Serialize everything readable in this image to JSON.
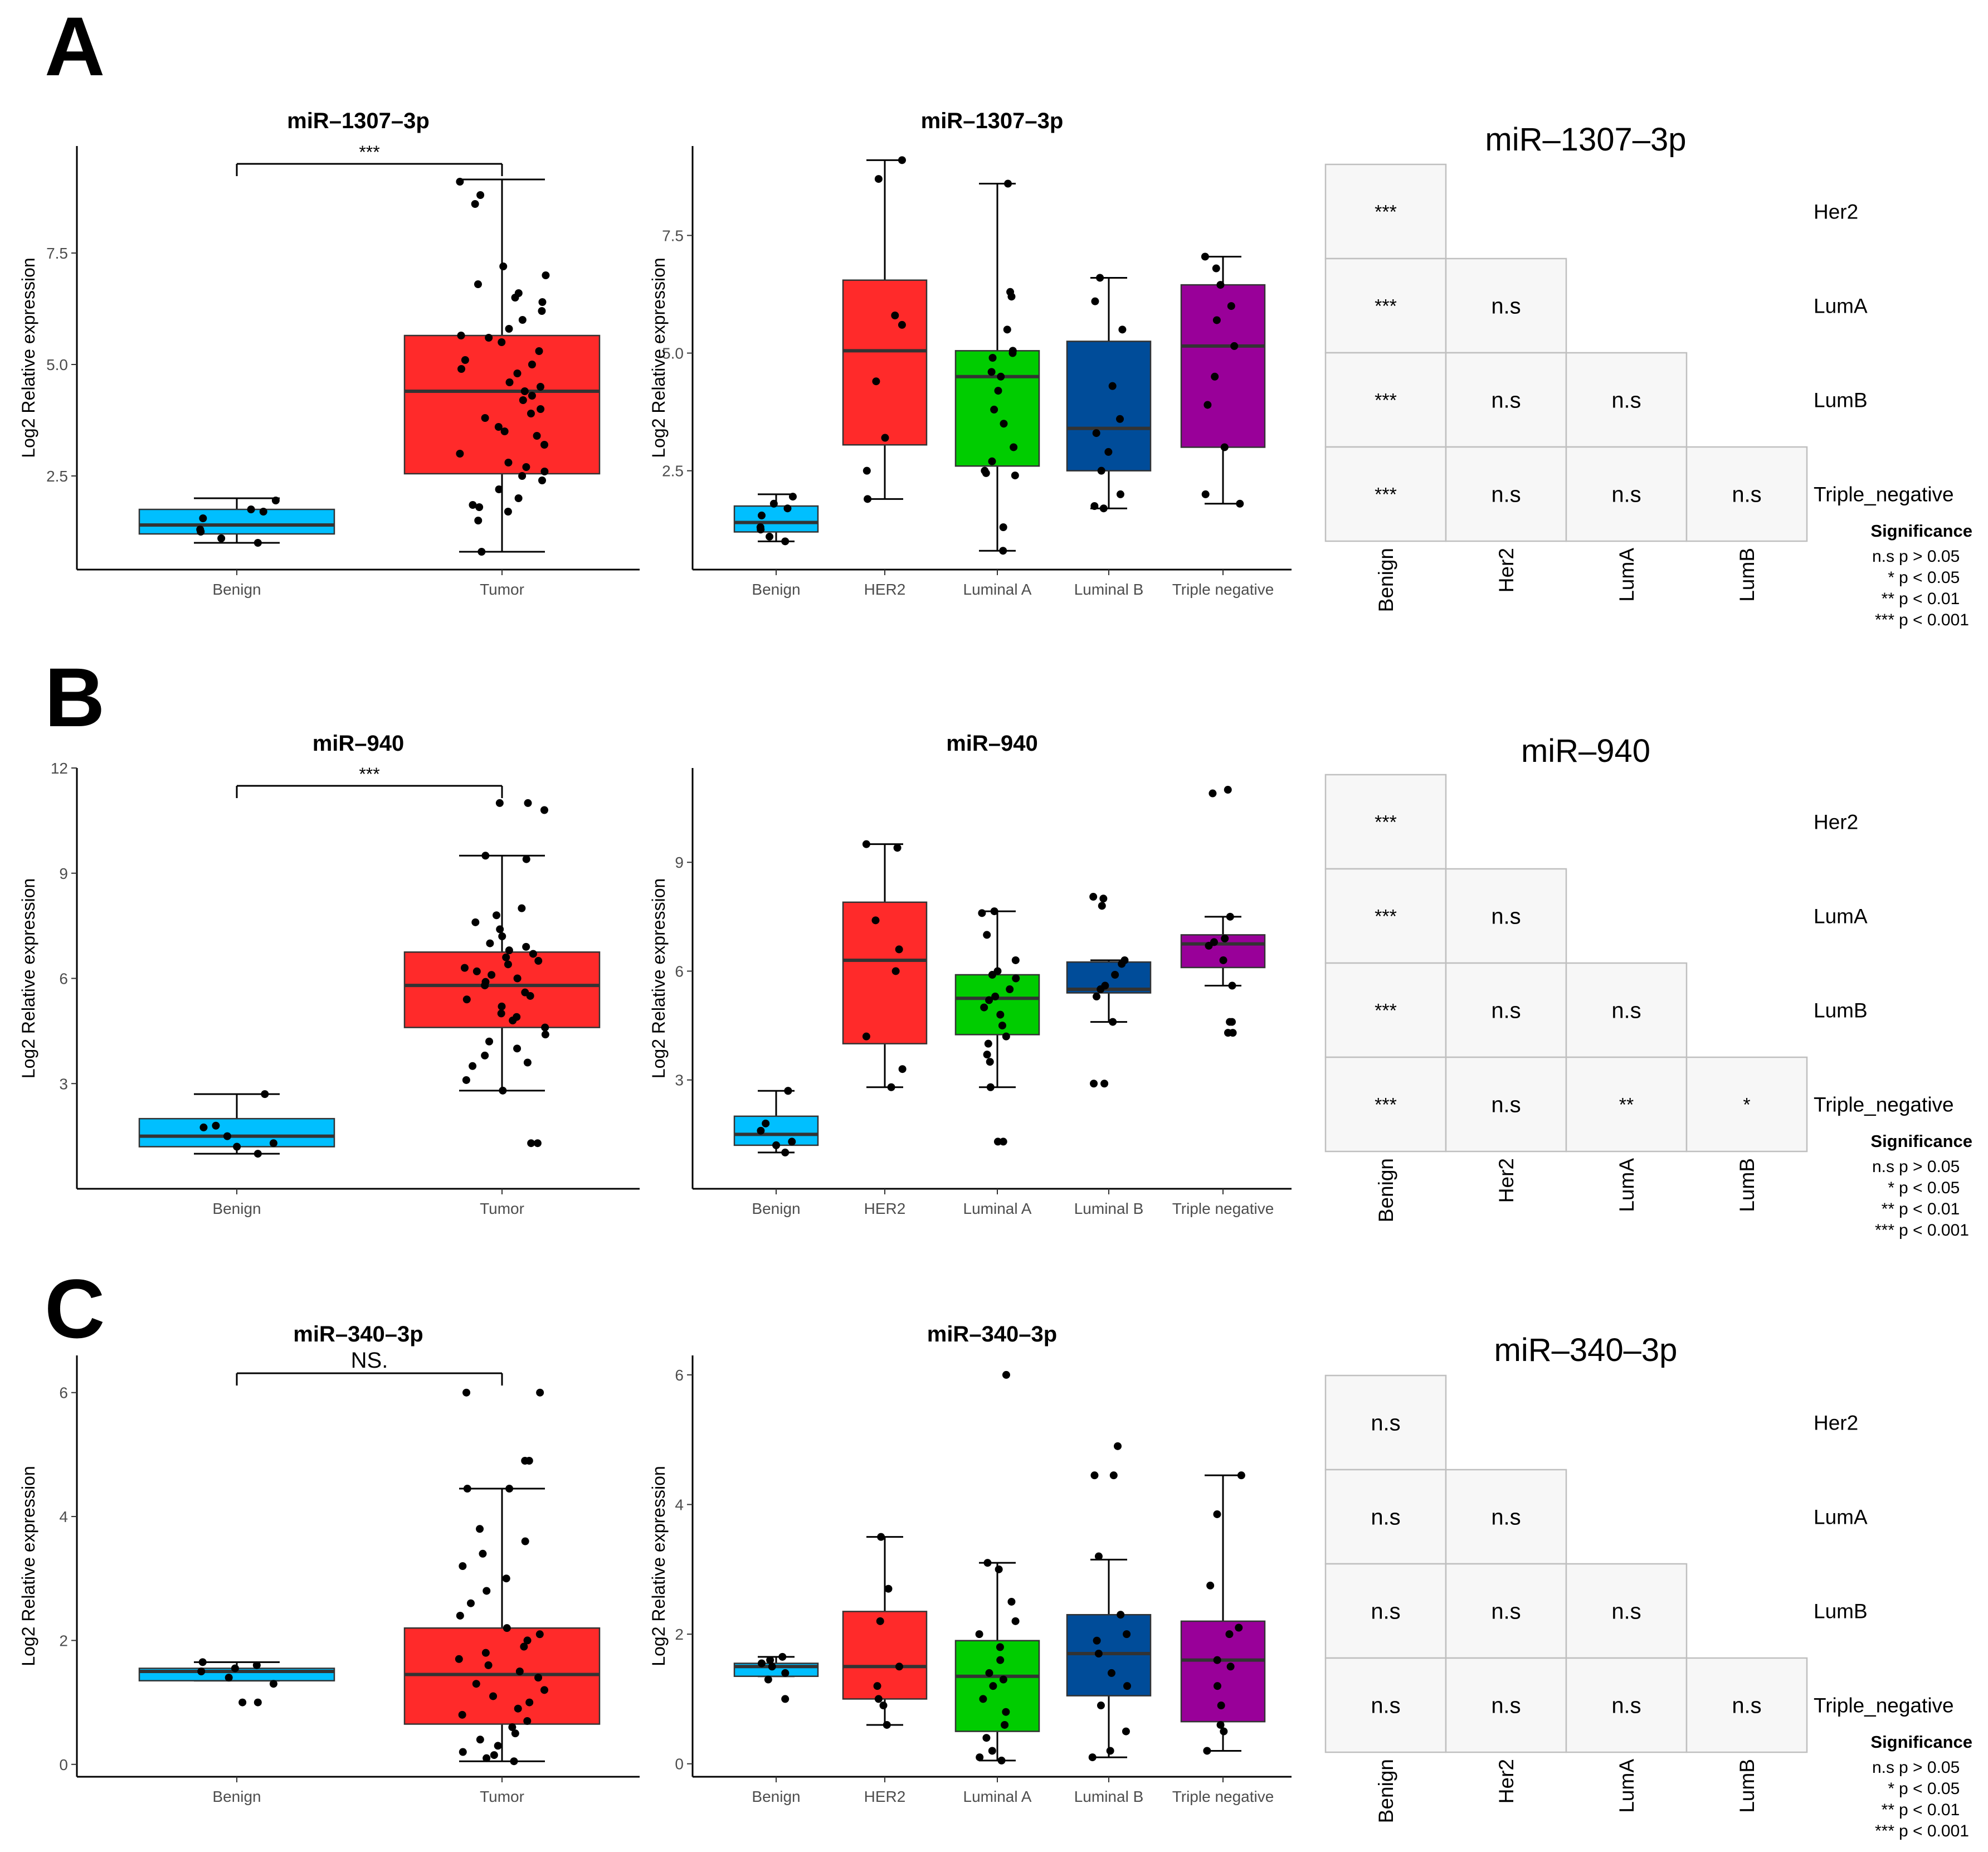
{
  "colors": {
    "Benign": "#00BFFF",
    "Tumor": "#FF2A2A",
    "HER2": "#FF2A2A",
    "Luminal A": "#00CC00",
    "Luminal B": "#004C99",
    "Triple negative": "#990099",
    "median": "#333333",
    "cell_fill": "#F7F7F7",
    "cell_border": "#BFBFBF"
  },
  "legend": {
    "title": "Significance",
    "items": [
      {
        "symbol": "n.s",
        "text": "p > 0.05"
      },
      {
        "symbol": "*",
        "text": "p < 0.05"
      },
      {
        "symbol": "**",
        "text": "p < 0.01"
      },
      {
        "symbol": "***",
        "text": "p < 0.001"
      }
    ]
  },
  "chart_data": [
    {
      "panel": "A",
      "mirna": "miR–1307–3p",
      "y_label": "Log2 Relative expression",
      "two_group": {
        "type": "box",
        "title": "miR–1307–3p",
        "ylim": [
          0.4,
          9.9
        ],
        "yticks": [
          2.5,
          5.0,
          7.5
        ],
        "ytick_labels": [
          "2.5",
          "5.0",
          "7.5"
        ],
        "significance": "***",
        "groups": [
          {
            "name": "Benign",
            "whisker_low": 1.0,
            "q1": 1.2,
            "median": 1.4,
            "q3": 1.75,
            "whisker_high": 2.0,
            "points": [
              1.0,
              1.1,
              1.25,
              1.3,
              1.55,
              1.7,
              1.75,
              1.95
            ]
          },
          {
            "name": "Tumor",
            "whisker_low": 0.8,
            "q1": 2.55,
            "median": 4.4,
            "q3": 5.65,
            "whisker_high": 9.15,
            "points": [
              0.8,
              1.5,
              1.7,
              1.8,
              1.85,
              2.0,
              2.2,
              2.4,
              2.5,
              2.6,
              2.7,
              2.8,
              3.0,
              3.2,
              3.4,
              3.5,
              3.6,
              3.8,
              3.9,
              4.0,
              4.2,
              4.3,
              4.4,
              4.5,
              4.6,
              4.8,
              4.9,
              5.0,
              5.1,
              5.3,
              5.5,
              5.6,
              5.65,
              5.8,
              6.0,
              6.2,
              6.4,
              6.5,
              6.6,
              6.8,
              7.0,
              7.2,
              8.6,
              8.8,
              9.1
            ]
          }
        ]
      },
      "subtype": {
        "type": "box",
        "title": "miR–1307–3p",
        "ylim": [
          0.4,
          9.4
        ],
        "yticks": [
          2.5,
          5.0,
          7.5
        ],
        "ytick_labels": [
          "2.5",
          "5.0",
          "7.5"
        ],
        "groups": [
          {
            "name": "Benign",
            "whisker_low": 1.0,
            "q1": 1.2,
            "median": 1.4,
            "q3": 1.75,
            "whisker_high": 2.0,
            "points": [
              1.0,
              1.1,
              1.25,
              1.3,
              1.55,
              1.7,
              1.8,
              1.95
            ]
          },
          {
            "name": "HER2",
            "whisker_low": 1.9,
            "q1": 3.05,
            "median": 5.05,
            "q3": 6.55,
            "whisker_high": 9.1,
            "points": [
              1.9,
              2.5,
              3.2,
              4.4,
              5.6,
              5.8,
              8.7,
              9.1
            ]
          },
          {
            "name": "Luminal A",
            "whisker_low": 0.8,
            "q1": 2.6,
            "median": 4.5,
            "q3": 5.05,
            "whisker_high": 8.6,
            "points": [
              0.8,
              1.3,
              2.4,
              2.45,
              2.5,
              2.7,
              3.0,
              3.5,
              3.8,
              4.2,
              4.5,
              4.6,
              4.9,
              5.0,
              5.05,
              5.5,
              6.2,
              6.3,
              8.6
            ]
          },
          {
            "name": "Luminal B",
            "whisker_low": 1.7,
            "q1": 2.5,
            "median": 3.4,
            "q3": 5.25,
            "whisker_high": 6.6,
            "points": [
              1.7,
              1.75,
              2.0,
              2.5,
              2.9,
              3.3,
              3.6,
              4.3,
              5.5,
              6.1,
              6.6
            ]
          },
          {
            "name": "Triple negative",
            "whisker_low": 1.8,
            "q1": 3.0,
            "median": 5.15,
            "q3": 6.45,
            "whisker_high": 7.05,
            "points": [
              1.8,
              2.0,
              3.0,
              3.9,
              4.5,
              5.15,
              5.7,
              6.0,
              6.45,
              6.8,
              7.05
            ]
          }
        ]
      },
      "matrix": {
        "title": "miR–1307–3p",
        "row_labels": [
          "Her2",
          "LumA",
          "LumB",
          "Triple_negative"
        ],
        "col_labels": [
          "Benign",
          "Her2",
          "LumA",
          "LumB"
        ],
        "cells": [
          [
            "***"
          ],
          [
            "***",
            "n.s"
          ],
          [
            "***",
            "n.s",
            "n.s"
          ],
          [
            "***",
            "n.s",
            "n.s",
            "n.s"
          ]
        ]
      }
    },
    {
      "panel": "B",
      "mirna": "miR–940",
      "y_label": "Log2 Relative expression",
      "two_group": {
        "type": "box",
        "title": "miR–940",
        "ylim": [
          0.0,
          12.0
        ],
        "yticks": [
          3,
          6,
          9,
          12
        ],
        "ytick_labels": [
          "3",
          "6",
          "9",
          "12"
        ],
        "significance": "***",
        "groups": [
          {
            "name": "Benign",
            "whisker_low": 1.0,
            "q1": 1.2,
            "median": 1.5,
            "q3": 2.0,
            "whisker_high": 2.7,
            "points": [
              1.0,
              1.2,
              1.3,
              1.5,
              1.75,
              1.8,
              2.7
            ]
          },
          {
            "name": "Tumor",
            "whisker_low": 2.8,
            "q1": 4.6,
            "median": 5.8,
            "q3": 6.75,
            "whisker_high": 9.5,
            "points": [
              1.3,
              1.3,
              2.8,
              3.1,
              3.5,
              3.6,
              3.8,
              4.0,
              4.2,
              4.4,
              4.6,
              4.8,
              4.9,
              5.0,
              5.2,
              5.4,
              5.5,
              5.6,
              5.8,
              5.9,
              6.0,
              6.1,
              6.2,
              6.3,
              6.4,
              6.5,
              6.6,
              6.7,
              6.8,
              6.9,
              7.0,
              7.2,
              7.4,
              7.6,
              7.8,
              8.0,
              9.4,
              9.5,
              10.8,
              11.0,
              11.0
            ]
          }
        ]
      },
      "subtype": {
        "type": "box",
        "title": "miR–940",
        "ylim": [
          0.0,
          11.6
        ],
        "yticks": [
          3,
          6,
          9
        ],
        "ytick_labels": [
          "3",
          "6",
          "9"
        ],
        "groups": [
          {
            "name": "Benign",
            "whisker_low": 1.0,
            "q1": 1.2,
            "median": 1.5,
            "q3": 2.0,
            "whisker_high": 2.7,
            "points": [
              1.0,
              1.2,
              1.3,
              1.6,
              1.8,
              2.7,
              2.7
            ]
          },
          {
            "name": "HER2",
            "whisker_low": 2.8,
            "q1": 4.0,
            "median": 6.3,
            "q3": 7.9,
            "whisker_high": 9.5,
            "points": [
              2.8,
              3.3,
              4.2,
              6.0,
              6.6,
              7.4,
              9.4,
              9.5
            ]
          },
          {
            "name": "Luminal A",
            "whisker_low": 2.8,
            "q1": 4.25,
            "median": 5.25,
            "q3": 5.9,
            "whisker_high": 7.65,
            "points": [
              1.3,
              1.3,
              2.8,
              3.5,
              3.7,
              4.0,
              4.2,
              4.5,
              4.8,
              5.0,
              5.2,
              5.3,
              5.5,
              5.8,
              5.9,
              6.0,
              6.3,
              7.0,
              7.6,
              7.65
            ]
          },
          {
            "name": "Luminal B",
            "whisker_low": 4.6,
            "q1": 5.4,
            "median": 5.5,
            "q3": 6.25,
            "whisker_high": 6.3,
            "points": [
              2.9,
              2.9,
              4.6,
              5.3,
              5.5,
              5.6,
              5.9,
              6.2,
              6.3,
              7.8,
              8.0,
              8.05
            ]
          },
          {
            "name": "Triple negative",
            "whisker_low": 5.6,
            "q1": 6.1,
            "median": 6.75,
            "q3": 7.0,
            "whisker_high": 7.5,
            "points": [
              4.3,
              4.3,
              4.6,
              4.6,
              5.6,
              6.3,
              6.7,
              6.8,
              6.9,
              7.5,
              10.9,
              11.0
            ]
          }
        ]
      },
      "matrix": {
        "title": "miR–940",
        "row_labels": [
          "Her2",
          "LumA",
          "LumB",
          "Triple_negative"
        ],
        "col_labels": [
          "Benign",
          "Her2",
          "LumA",
          "LumB"
        ],
        "cells": [
          [
            "***"
          ],
          [
            "***",
            "n.s"
          ],
          [
            "***",
            "n.s",
            "n.s"
          ],
          [
            "***",
            "n.s",
            "**",
            "*"
          ]
        ]
      }
    },
    {
      "panel": "C",
      "mirna": "miR–340–3p",
      "y_label": "Log2 Relative expression",
      "two_group": {
        "type": "box",
        "title": "miR–340–3p",
        "ylim": [
          -0.2,
          6.6
        ],
        "yticks": [
          0,
          2,
          4,
          6
        ],
        "ytick_labels": [
          "0",
          "2",
          "4",
          "6"
        ],
        "significance": "NS.",
        "groups": [
          {
            "name": "Benign",
            "whisker_low": 1.35,
            "q1": 1.35,
            "median": 1.5,
            "q3": 1.55,
            "whisker_high": 1.65,
            "points": [
              1.0,
              1.0,
              1.3,
              1.4,
              1.5,
              1.55,
              1.6,
              1.65
            ]
          },
          {
            "name": "Tumor",
            "whisker_low": 0.05,
            "q1": 0.65,
            "median": 1.45,
            "q3": 2.2,
            "whisker_high": 4.45,
            "points": [
              0.05,
              0.1,
              0.15,
              0.2,
              0.3,
              0.4,
              0.5,
              0.6,
              0.7,
              0.8,
              0.9,
              1.0,
              1.1,
              1.2,
              1.3,
              1.4,
              1.5,
              1.6,
              1.7,
              1.8,
              1.9,
              2.0,
              2.1,
              2.2,
              2.4,
              2.6,
              2.8,
              3.0,
              3.2,
              3.4,
              3.6,
              3.8,
              4.45,
              4.45,
              4.9,
              4.9,
              6.0,
              6.0
            ]
          }
        ]
      },
      "subtype": {
        "type": "box",
        "title": "miR–340–3p",
        "ylim": [
          -0.2,
          6.3
        ],
        "yticks": [
          0,
          2,
          4,
          6
        ],
        "ytick_labels": [
          "0",
          "2",
          "4",
          "6"
        ],
        "groups": [
          {
            "name": "Benign",
            "whisker_low": 1.35,
            "q1": 1.35,
            "median": 1.5,
            "q3": 1.55,
            "whisker_high": 1.65,
            "points": [
              1.0,
              1.3,
              1.4,
              1.5,
              1.55,
              1.6,
              1.65
            ]
          },
          {
            "name": "HER2",
            "whisker_low": 0.6,
            "q1": 1.0,
            "median": 1.5,
            "q3": 2.35,
            "whisker_high": 3.5,
            "points": [
              0.6,
              0.9,
              1.0,
              1.2,
              1.5,
              2.2,
              2.7,
              3.5
            ]
          },
          {
            "name": "Luminal A",
            "whisker_low": 0.05,
            "q1": 0.5,
            "median": 1.35,
            "q3": 1.9,
            "whisker_high": 3.1,
            "points": [
              0.05,
              0.1,
              0.2,
              0.4,
              0.6,
              0.8,
              1.0,
              1.2,
              1.3,
              1.4,
              1.6,
              1.8,
              2.0,
              2.2,
              2.5,
              3.0,
              3.1,
              6.0
            ]
          },
          {
            "name": "Luminal B",
            "whisker_low": 0.1,
            "q1": 1.05,
            "median": 1.7,
            "q3": 2.3,
            "whisker_high": 3.15,
            "points": [
              0.1,
              0.2,
              0.5,
              0.9,
              1.2,
              1.4,
              1.7,
              1.9,
              2.0,
              2.3,
              3.2,
              4.45,
              4.45,
              4.9
            ]
          },
          {
            "name": "Triple negative",
            "whisker_low": 0.2,
            "q1": 0.65,
            "median": 1.6,
            "q3": 2.2,
            "whisker_high": 4.45,
            "points": [
              0.2,
              0.5,
              0.6,
              0.9,
              1.2,
              1.5,
              1.6,
              2.0,
              2.1,
              2.75,
              3.85,
              4.45
            ]
          }
        ]
      },
      "matrix": {
        "title": "miR–340–3p",
        "row_labels": [
          "Her2",
          "LumA",
          "LumB",
          "Triple_negative"
        ],
        "col_labels": [
          "Benign",
          "Her2",
          "LumA",
          "LumB"
        ],
        "cells": [
          [
            "n.s"
          ],
          [
            "n.s",
            "n.s"
          ],
          [
            "n.s",
            "n.s",
            "n.s"
          ],
          [
            "n.s",
            "n.s",
            "n.s",
            "n.s"
          ]
        ]
      }
    }
  ]
}
